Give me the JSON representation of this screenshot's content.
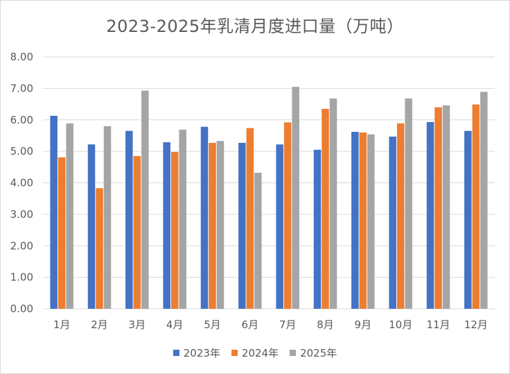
{
  "chart_data": {
    "type": "bar",
    "title": "2023-2025年乳清月度进口量（万吨）",
    "categories": [
      "1月",
      "2月",
      "3月",
      "4月",
      "5月",
      "6月",
      "7月",
      "8月",
      "9月",
      "10月",
      "11月",
      "12月"
    ],
    "series": [
      {
        "name": "2023年",
        "color": "#4472c4",
        "values": [
          6.13,
          5.22,
          5.65,
          5.29,
          5.78,
          5.27,
          5.22,
          5.05,
          5.62,
          5.47,
          5.93,
          5.65
        ]
      },
      {
        "name": "2024年",
        "color": "#ed7d31",
        "values": [
          4.81,
          3.83,
          4.85,
          4.98,
          5.27,
          5.74,
          5.92,
          6.35,
          5.6,
          5.89,
          6.4,
          6.49
        ]
      },
      {
        "name": "2025年",
        "color": "#a5a5a5",
        "values": [
          5.89,
          5.8,
          6.93,
          5.69,
          5.33,
          4.32,
          7.05,
          6.68,
          5.54,
          6.68,
          6.46,
          6.89
        ]
      }
    ],
    "y_ticks": [
      "0.00",
      "1.00",
      "2.00",
      "3.00",
      "4.00",
      "5.00",
      "6.00",
      "7.00",
      "8.00"
    ],
    "ylim": [
      0,
      8
    ],
    "grid": true,
    "legend_position": "bottom"
  }
}
